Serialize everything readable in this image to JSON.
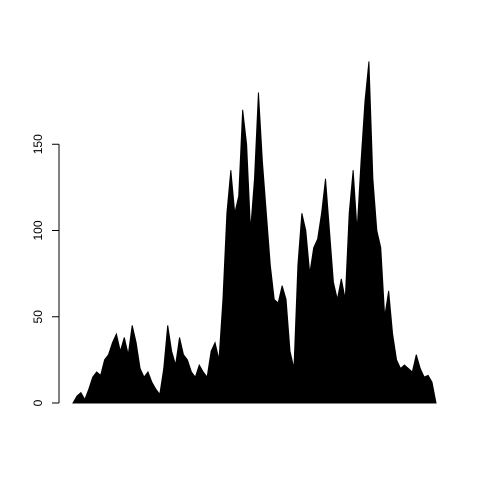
{
  "chart_data": {
    "type": "area",
    "color": "#000000",
    "values": [
      0,
      4,
      6,
      2,
      8,
      15,
      18,
      16,
      25,
      28,
      35,
      40,
      30,
      38,
      28,
      45,
      35,
      20,
      15,
      18,
      12,
      8,
      5,
      20,
      45,
      30,
      22,
      38,
      28,
      25,
      18,
      15,
      22,
      18,
      15,
      30,
      35,
      25,
      60,
      110,
      135,
      110,
      120,
      170,
      150,
      100,
      130,
      180,
      140,
      110,
      80,
      60,
      58,
      68,
      60,
      30,
      20,
      80,
      110,
      100,
      75,
      90,
      95,
      110,
      130,
      100,
      70,
      60,
      72,
      60,
      110,
      135,
      100,
      140,
      175,
      198,
      130,
      100,
      90,
      50,
      65,
      40,
      25,
      20,
      22,
      20,
      18,
      28,
      20,
      15,
      16,
      12,
      0
    ],
    "ylim": [
      0,
      200
    ],
    "yticks": [
      0,
      50,
      100,
      150
    ]
  }
}
